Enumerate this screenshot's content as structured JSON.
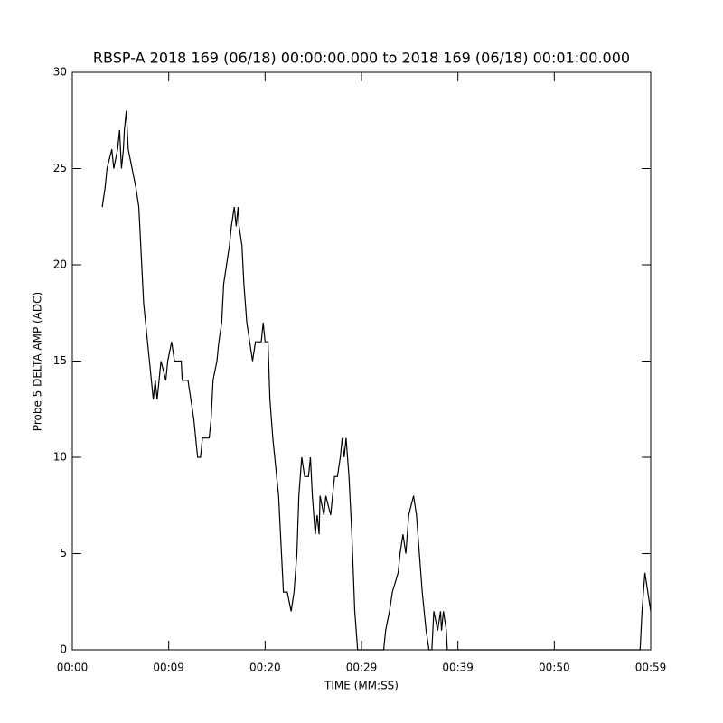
{
  "chart_data": {
    "type": "line",
    "title": "RBSP-A 2018 169 (06/18) 00:00:00.000 to 2018 169 (06/18) 00:01:00.000",
    "x_label": "TIME (MM:SS)",
    "y_label": "Probe 5 DELTA AMP (ADC)",
    "xlim": [
      0,
      60
    ],
    "ylim": [
      0,
      30
    ],
    "xticks": [
      {
        "value": 0,
        "label": "00:00"
      },
      {
        "value": 10,
        "label": "00:09"
      },
      {
        "value": 20,
        "label": "00:20"
      },
      {
        "value": 30,
        "label": "00:29"
      },
      {
        "value": 40,
        "label": "00:39"
      },
      {
        "value": 50,
        "label": "00:50"
      },
      {
        "value": 60,
        "label": "00:59"
      }
    ],
    "yticks": [
      0,
      5,
      10,
      15,
      20,
      25,
      30
    ],
    "color": "#000000",
    "x": [
      3.1,
      3.4,
      3.6,
      4.1,
      4.3,
      4.7,
      4.9,
      5.1,
      5.3,
      5.4,
      5.6,
      5.8,
      6.2,
      6.6,
      6.9,
      7.1,
      7.4,
      7.8,
      8.2,
      8.4,
      8.6,
      8.8,
      9.0,
      9.2,
      9.7,
      9.9,
      10.3,
      10.6,
      11.3,
      11.4,
      12.0,
      12.3,
      12.6,
      12.8,
      13.0,
      13.3,
      13.5,
      14.2,
      14.4,
      14.6,
      15.0,
      15.2,
      15.5,
      15.7,
      16.0,
      16.3,
      16.5,
      16.8,
      17.0,
      17.2,
      17.3,
      17.6,
      17.8,
      18.1,
      18.4,
      18.7,
      19.0,
      19.6,
      19.8,
      20.0,
      20.3,
      20.5,
      20.8,
      21.2,
      21.4,
      21.7,
      21.9,
      22.3,
      22.7,
      23.0,
      23.3,
      23.5,
      23.8,
      24.1,
      24.5,
      24.7,
      24.9,
      25.2,
      25.4,
      25.6,
      25.7,
      26.1,
      26.3,
      26.8,
      27.0,
      27.2,
      27.5,
      27.8,
      28.0,
      28.2,
      28.4,
      28.7,
      29.0,
      29.3,
      29.6,
      32.3,
      32.5,
      32.9,
      33.2,
      33.8,
      34.0,
      34.3,
      34.6,
      34.9,
      35.4,
      35.7,
      36.0,
      36.3,
      36.7,
      37.0,
      37.3,
      37.5,
      37.9,
      38.2,
      38.3,
      38.5,
      38.8,
      38.9,
      58.9,
      59.1,
      59.4,
      59.7,
      60.0
    ],
    "values": [
      23,
      24,
      25,
      26,
      25,
      26,
      27,
      25,
      26,
      27,
      28,
      26,
      25,
      24,
      23,
      21,
      18,
      16,
      14,
      13,
      14,
      13,
      14,
      15,
      14,
      15,
      16,
      15,
      15,
      14,
      14,
      13,
      12,
      11,
      10,
      10,
      11,
      11,
      12,
      14,
      15,
      16,
      17,
      19,
      20,
      21,
      22,
      23,
      22,
      23,
      22,
      21,
      19,
      17,
      16,
      15,
      16,
      16,
      17,
      16,
      16,
      13,
      11,
      9,
      8,
      5,
      3,
      3,
      2,
      3,
      5,
      8,
      10,
      9,
      9,
      10,
      8,
      6,
      7,
      6,
      8,
      7,
      8,
      7,
      8,
      9,
      9,
      10,
      11,
      10,
      11,
      9,
      6,
      2,
      0,
      0,
      1,
      2,
      3,
      4,
      5,
      6,
      5,
      7,
      8,
      7,
      5,
      3,
      1,
      0,
      0,
      2,
      1,
      2,
      1,
      2,
      1,
      0,
      0,
      2,
      4,
      3,
      2
    ]
  }
}
